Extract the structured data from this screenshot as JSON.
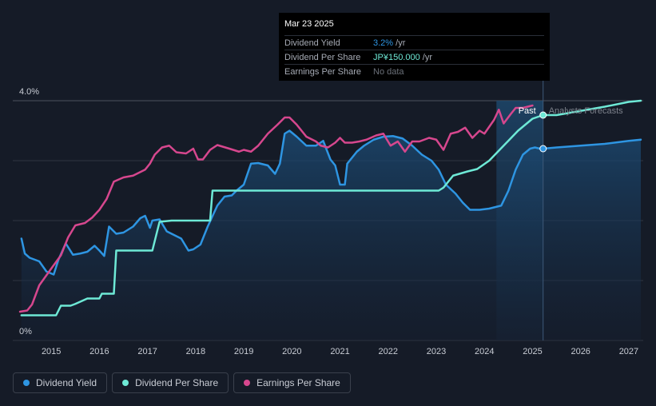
{
  "colors": {
    "background": "#151b27",
    "dividend_yield": "#2e95e2",
    "dividend_per_share": "#6ee9d6",
    "earnings_per_share": "#d6478e",
    "grid": "#2f3542",
    "axis_text": "#c8ccd4"
  },
  "tooltip": {
    "date": "Mar 23 2025",
    "rows": [
      {
        "label": "Dividend Yield",
        "value": "3.2%",
        "unit": " /yr",
        "value_color": "#2e95e2"
      },
      {
        "label": "Dividend Per Share",
        "value": "JP¥150.000",
        "unit": " /yr",
        "value_color": "#6ee9d6"
      },
      {
        "label": "Earnings Per Share",
        "value": "No data",
        "unit": "",
        "value_color": "#6b7079"
      }
    ]
  },
  "legend": [
    {
      "label": "Dividend Yield",
      "color": "#2e95e2"
    },
    {
      "label": "Dividend Per Share",
      "color": "#6ee9d6"
    },
    {
      "label": "Earnings Per Share",
      "color": "#d6478e"
    }
  ],
  "chart_data": {
    "type": "line",
    "ylabel_top": "4.0%",
    "ylabel_bottom": "0%",
    "ylim": [
      0,
      4.0
    ],
    "xlim": [
      2014.2,
      2027.3
    ],
    "x_ticks": [
      "2015",
      "2016",
      "2017",
      "2018",
      "2019",
      "2020",
      "2021",
      "2022",
      "2023",
      "2024",
      "2025",
      "2026",
      "2027"
    ],
    "x_tick_values": [
      2015,
      2016,
      2017,
      2018,
      2019,
      2020,
      2021,
      2022,
      2023,
      2024,
      2025,
      2026,
      2027
    ],
    "past_label": "Past",
    "forecast_label": "Analysts Forecasts",
    "forecast_start": 2024.25,
    "current_date": 2025.22,
    "series": [
      {
        "name": "Dividend Yield",
        "key": "dividend_yield",
        "x": [
          2014.38,
          2014.45,
          2014.55,
          2014.75,
          2014.9,
          2015.05,
          2015.15,
          2015.3,
          2015.45,
          2015.6,
          2015.75,
          2015.9,
          2016.0,
          2016.1,
          2016.2,
          2016.35,
          2016.5,
          2016.7,
          2016.85,
          2016.95,
          2017.05,
          2017.1,
          2017.25,
          2017.4,
          2017.55,
          2017.7,
          2017.85,
          2017.95,
          2018.1,
          2018.25,
          2018.45,
          2018.6,
          2018.75,
          2018.85,
          2019.0,
          2019.15,
          2019.3,
          2019.5,
          2019.65,
          2019.75,
          2019.85,
          2019.95,
          2020.1,
          2020.3,
          2020.5,
          2020.65,
          2020.8,
          2020.9,
          2021.0,
          2021.1,
          2021.15,
          2021.25,
          2021.35,
          2021.5,
          2021.7,
          2021.9,
          2022.1,
          2022.3,
          2022.5,
          2022.7,
          2022.9,
          2023.05,
          2023.2,
          2023.4,
          2023.55,
          2023.7,
          2023.9,
          2024.1,
          2024.35,
          2024.5,
          2024.65,
          2024.8,
          2024.95,
          2025.05,
          2025.15,
          2025.22,
          2025.5,
          2026.0,
          2026.5,
          2027.0,
          2027.25
        ],
        "y": [
          1.7,
          1.45,
          1.38,
          1.32,
          1.15,
          1.1,
          1.35,
          1.62,
          1.43,
          1.45,
          1.48,
          1.58,
          1.5,
          1.41,
          1.9,
          1.78,
          1.8,
          1.9,
          2.04,
          2.08,
          1.88,
          2.0,
          2.02,
          1.82,
          1.76,
          1.7,
          1.5,
          1.52,
          1.6,
          1.9,
          2.25,
          2.4,
          2.42,
          2.5,
          2.6,
          2.95,
          2.96,
          2.92,
          2.78,
          2.95,
          3.45,
          3.5,
          3.4,
          3.25,
          3.25,
          3.33,
          3.02,
          2.92,
          2.6,
          2.6,
          2.95,
          3.05,
          3.15,
          3.25,
          3.35,
          3.4,
          3.41,
          3.37,
          3.25,
          3.1,
          3.0,
          2.85,
          2.6,
          2.45,
          2.3,
          2.18,
          2.18,
          2.2,
          2.25,
          2.5,
          2.85,
          3.1,
          3.2,
          3.22,
          3.2,
          3.2,
          3.22,
          3.25,
          3.28,
          3.33,
          3.35
        ]
      },
      {
        "name": "Dividend Per Share",
        "key": "dividend_per_share",
        "x": [
          2014.38,
          2015.1,
          2015.2,
          2015.4,
          2015.5,
          2015.75,
          2016.0,
          2016.05,
          2016.3,
          2016.35,
          2016.5,
          2017.0,
          2017.1,
          2017.25,
          2017.5,
          2017.7,
          2018.05,
          2018.3,
          2018.35,
          2019.0,
          2020.0,
          2021.0,
          2022.0,
          2022.5,
          2023.05,
          2023.15,
          2023.35,
          2023.65,
          2023.85,
          2024.1,
          2024.4,
          2024.7,
          2025.0,
          2025.22,
          2025.5,
          2026.0,
          2026.5,
          2027.0,
          2027.25
        ],
        "y": [
          0.42,
          0.42,
          0.58,
          0.58,
          0.61,
          0.7,
          0.7,
          0.78,
          0.78,
          1.5,
          1.5,
          1.5,
          1.5,
          1.98,
          2.0,
          2.0,
          2.0,
          2.0,
          2.5,
          2.5,
          2.5,
          2.5,
          2.5,
          2.5,
          2.5,
          2.55,
          2.75,
          2.82,
          2.86,
          3.0,
          3.25,
          3.5,
          3.7,
          3.76,
          3.76,
          3.83,
          3.9,
          3.98,
          4.0
        ]
      },
      {
        "name": "Earnings Per Share",
        "key": "earnings_per_share",
        "x": [
          2014.35,
          2014.5,
          2014.6,
          2014.75,
          2015.0,
          2015.2,
          2015.35,
          2015.5,
          2015.7,
          2015.85,
          2016.0,
          2016.15,
          2016.3,
          2016.5,
          2016.7,
          2016.95,
          2017.05,
          2017.15,
          2017.3,
          2017.45,
          2017.6,
          2017.8,
          2017.95,
          2018.05,
          2018.15,
          2018.3,
          2018.45,
          2018.7,
          2018.9,
          2019.0,
          2019.15,
          2019.3,
          2019.5,
          2019.7,
          2019.85,
          2019.95,
          2020.1,
          2020.3,
          2020.5,
          2020.6,
          2020.75,
          2020.9,
          2021.0,
          2021.1,
          2021.25,
          2021.4,
          2021.55,
          2021.75,
          2021.9,
          2022.05,
          2022.2,
          2022.35,
          2022.5,
          2022.65,
          2022.85,
          2023.0,
          2023.15,
          2023.3,
          2023.45,
          2023.6,
          2023.75,
          2023.9,
          2024.0,
          2024.2,
          2024.3,
          2024.4,
          2024.55,
          2024.65,
          2024.8,
          2025.0
        ],
        "y": [
          0.48,
          0.5,
          0.6,
          0.92,
          1.2,
          1.42,
          1.72,
          1.92,
          1.96,
          2.05,
          2.18,
          2.36,
          2.65,
          2.72,
          2.75,
          2.85,
          2.95,
          3.1,
          3.22,
          3.25,
          3.14,
          3.12,
          3.2,
          3.02,
          3.02,
          3.18,
          3.26,
          3.2,
          3.15,
          3.18,
          3.15,
          3.25,
          3.45,
          3.6,
          3.72,
          3.72,
          3.6,
          3.4,
          3.32,
          3.25,
          3.22,
          3.3,
          3.38,
          3.3,
          3.3,
          3.32,
          3.35,
          3.42,
          3.45,
          3.25,
          3.32,
          3.15,
          3.32,
          3.32,
          3.38,
          3.35,
          3.18,
          3.45,
          3.48,
          3.55,
          3.38,
          3.5,
          3.45,
          3.68,
          3.85,
          3.62,
          3.78,
          3.88,
          3.88,
          3.92
        ]
      }
    ]
  }
}
